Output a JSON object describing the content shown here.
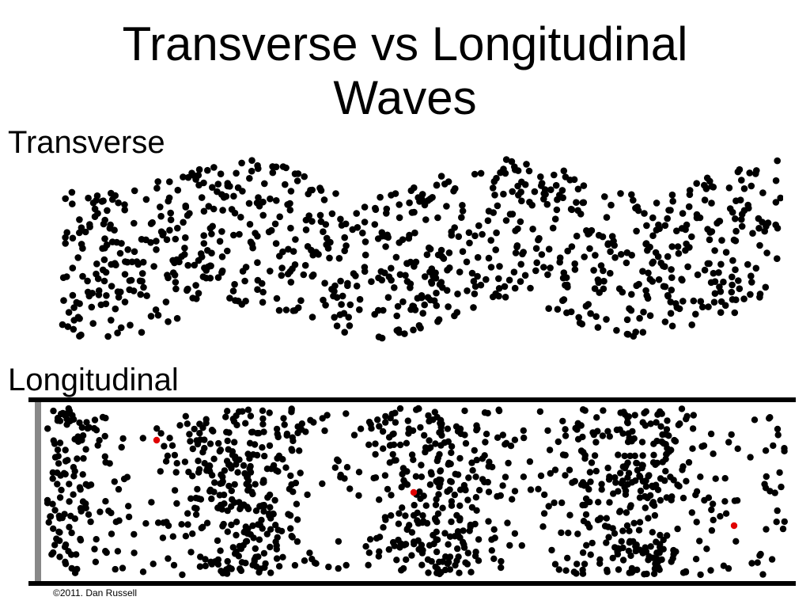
{
  "slide": {
    "title_line1": "Transverse vs Longitudinal",
    "title_line2": "Waves"
  },
  "transverse": {
    "label": "Transverse",
    "particle_color": "#000000"
  },
  "longitudinal": {
    "label": "Longitudinal",
    "particle_color": "#000000",
    "highlight_color": "#e00000",
    "boundary_color": "#000000",
    "piston_color": "#888888"
  },
  "credit": "©2011. Dan Russell"
}
